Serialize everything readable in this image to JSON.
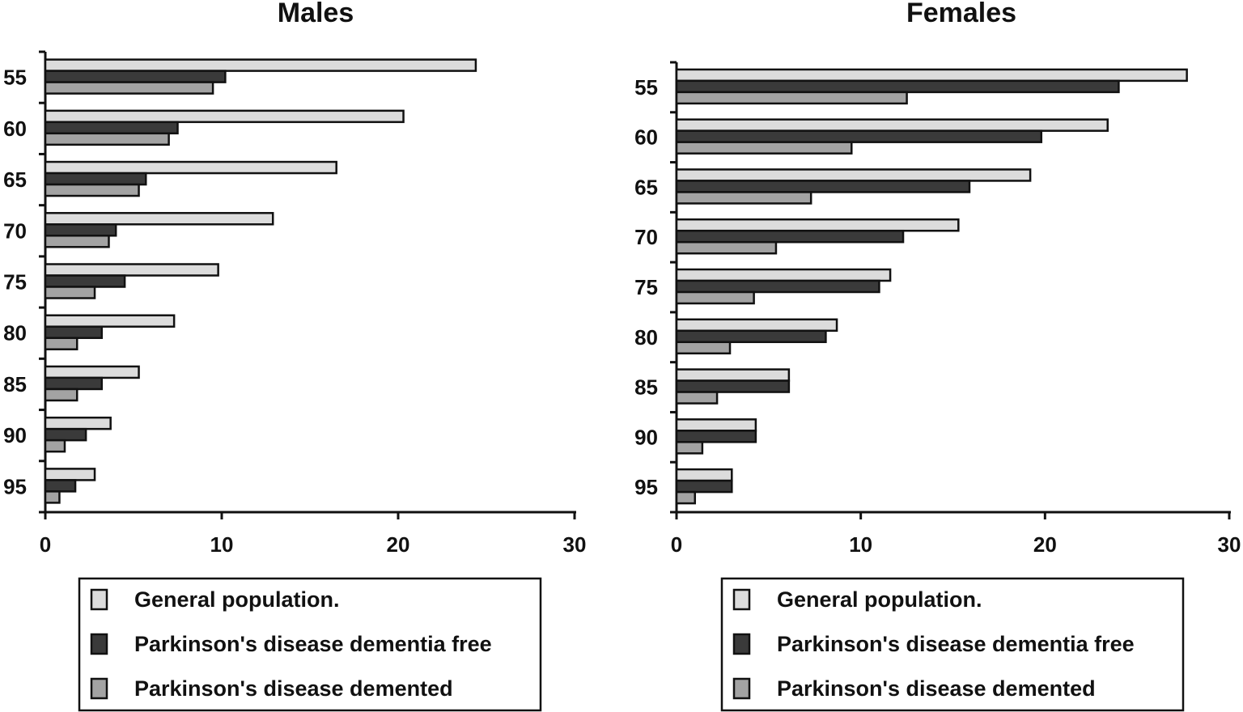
{
  "chart_data": [
    {
      "type": "bar",
      "orientation": "horizontal",
      "title": "Males",
      "xlabel": "",
      "ylabel": "",
      "xlim": [
        0,
        30
      ],
      "xticks": [
        "0",
        "10",
        "20",
        "30"
      ],
      "categories": [
        "55",
        "60",
        "65",
        "70",
        "75",
        "80",
        "85",
        "90",
        "95"
      ],
      "grid": false,
      "legend_position": "bottom",
      "series": [
        {
          "name": "General population.",
          "color": "#dcdcdc",
          "values": [
            24.4,
            20.3,
            16.5,
            12.9,
            9.8,
            7.3,
            5.3,
            3.7,
            2.8
          ]
        },
        {
          "name": "Parkinson's disease dementia free",
          "color": "#3a3a3a",
          "values": [
            10.2,
            7.5,
            5.7,
            4.0,
            4.5,
            3.2,
            3.2,
            2.3,
            1.7
          ]
        },
        {
          "name": "Parkinson's disease demented",
          "color": "#a3a3a3",
          "values": [
            9.5,
            7.0,
            5.3,
            3.6,
            2.8,
            1.8,
            1.8,
            1.1,
            0.8
          ]
        }
      ]
    },
    {
      "type": "bar",
      "orientation": "horizontal",
      "title": "Females",
      "xlabel": "",
      "ylabel": "",
      "xlim": [
        0,
        30
      ],
      "xticks": [
        "0",
        "10",
        "20",
        "30"
      ],
      "categories": [
        "55",
        "60",
        "65",
        "70",
        "75",
        "80",
        "85",
        "90",
        "95"
      ],
      "grid": false,
      "legend_position": "bottom",
      "series": [
        {
          "name": "General population.",
          "color": "#dcdcdc",
          "values": [
            27.7,
            23.4,
            19.2,
            15.3,
            11.6,
            8.7,
            6.1,
            4.3,
            3.0
          ]
        },
        {
          "name": "Parkinson's disease dementia free",
          "color": "#3a3a3a",
          "values": [
            24.0,
            19.8,
            15.9,
            12.3,
            11.0,
            8.1,
            6.1,
            4.3,
            3.0
          ]
        },
        {
          "name": "Parkinson's disease demented",
          "color": "#a3a3a3",
          "values": [
            12.5,
            9.5,
            7.3,
            5.4,
            4.2,
            2.9,
            2.2,
            1.4,
            1.0
          ]
        }
      ]
    }
  ]
}
